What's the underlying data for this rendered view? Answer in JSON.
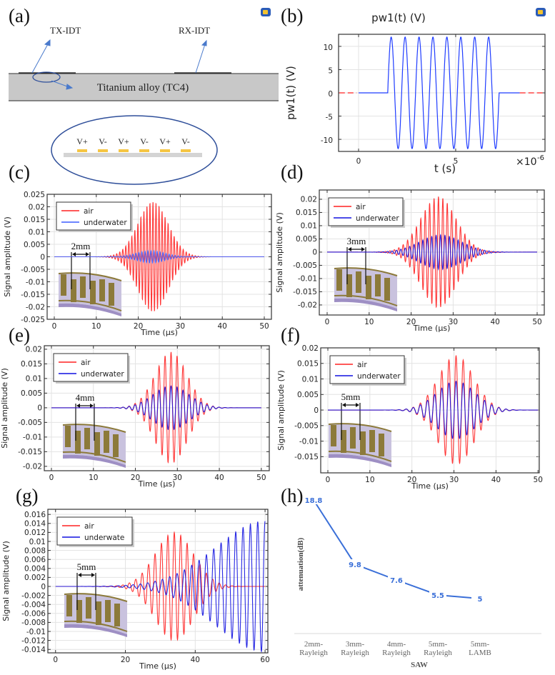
{
  "panel_labels": [
    "(a)",
    "(b)",
    "(c)",
    "(d)",
    "(e)",
    "(f)",
    "(g)",
    "(h)"
  ],
  "diagram_a": {
    "tx_label": "TX-IDT",
    "rx_label": "RX-IDT",
    "substrate_label": "Titanium alloy (TC4)",
    "electrode_labels": [
      "V+",
      "V-",
      "V+",
      "V-",
      "V+",
      "V-"
    ],
    "colors": {
      "substrate": "#c8c8c8",
      "electrode": "#f5c542",
      "callout": "#2f4f9a"
    }
  },
  "chart_data": [
    {
      "id": "b",
      "type": "line",
      "title": "pw1(t) (V)",
      "xlabel": "t (s)",
      "ylabel": "pw1(t) (V)",
      "x_multiplier": "×10",
      "x_exponent": "-6",
      "xlim": [
        -1.03,
        9.6
      ],
      "ylim": [
        -12.6,
        12.6
      ],
      "xticks": [
        0,
        5
      ],
      "yticks": [
        10,
        5,
        0,
        -5,
        -10
      ],
      "grid": true,
      "signal": {
        "amplitude": 12,
        "burst_start": 1.5,
        "cycles": 8,
        "period": 0.717,
        "color": "#1f3cff"
      },
      "extrapolation_color": "#ff2020"
    },
    {
      "id": "c",
      "type": "line",
      "xlabel": "Time (µs)",
      "ylabel": "Signal amplitude (V)",
      "xlim": [
        -1.7,
        51.7
      ],
      "ylim": [
        -0.025,
        0.025
      ],
      "xticks": [
        0,
        10,
        20,
        30,
        40,
        50
      ],
      "yticks": [
        0.025,
        0.02,
        0.015,
        0.01,
        0.005,
        0,
        -0.005,
        -0.01,
        -0.015,
        -0.02,
        -0.025
      ],
      "grid": true,
      "legend": "top-left",
      "spacing_label": "2mm",
      "series": [
        {
          "name": "air",
          "color": "#ff2020",
          "peak_amplitude": 0.022,
          "peak_time": 23.5,
          "spread": 3.6,
          "period": 0.72
        },
        {
          "name": "underwater",
          "color": "#3b5bff",
          "peak_amplitude": 0.0025,
          "peak_time": 23,
          "spread": 3.4,
          "period": 0.72
        }
      ]
    },
    {
      "id": "d",
      "type": "line",
      "xlabel": "Time (µs)",
      "ylabel": "Signal amplitude (V)",
      "xlim": [
        -1.87,
        51.7
      ],
      "ylim": [
        -0.0238,
        0.0235
      ],
      "xticks": [
        0,
        10,
        20,
        30,
        40,
        50
      ],
      "yticks": [
        0.02,
        0.015,
        0.01,
        0.005,
        0,
        -0.005,
        -0.01,
        -0.015,
        -0.02
      ],
      "grid": true,
      "legend": "top-left",
      "spacing_label": "3mm",
      "series": [
        {
          "name": "air",
          "color": "#ff2020",
          "peak_amplitude": 0.021,
          "peak_time": 26.5,
          "spread": 4.2,
          "period": 1.05
        },
        {
          "name": "underwater",
          "color": "#1010e0",
          "peak_amplitude": 0.0065,
          "peak_time": 27,
          "spread": 5,
          "period": 1.05
        }
      ]
    },
    {
      "id": "e",
      "type": "line",
      "xlabel": "Time (µs)",
      "ylabel": "Signal amplitude (V)",
      "xlim": [
        -1.7,
        51.9
      ],
      "ylim": [
        -0.0215,
        0.0212
      ],
      "xticks": [
        0,
        10,
        20,
        30,
        40,
        50
      ],
      "yticks": [
        0.02,
        0.015,
        0.01,
        0.005,
        0,
        -0.005,
        -0.01,
        -0.015,
        -0.02
      ],
      "grid": true,
      "legend": "top-left",
      "spacing_label": "4mm",
      "series": [
        {
          "name": "air",
          "color": "#ff2020",
          "peak_amplitude": 0.019,
          "peak_time": 28.5,
          "spread": 3.8,
          "period": 1.43
        },
        {
          "name": "underwater",
          "color": "#1010e0",
          "peak_amplitude": 0.0075,
          "peak_time": 28.5,
          "spread": 4.3,
          "period": 1.43
        }
      ]
    },
    {
      "id": "f",
      "type": "line",
      "xlabel": "Time (µs)",
      "ylabel": "Signal amplitude (V)",
      "xlim": [
        -1.7,
        50.3
      ],
      "ylim": [
        -0.0202,
        0.02
      ],
      "xticks": [
        0,
        10,
        20,
        30,
        40,
        50
      ],
      "yticks": [
        0.02,
        0.015,
        0.01,
        0.005,
        0,
        -0.005,
        -0.01,
        -0.015
      ],
      "grid": true,
      "legend": "top-left",
      "spacing_label": "5mm",
      "series": [
        {
          "name": "air",
          "color": "#ff2020",
          "peak_amplitude": 0.0175,
          "peak_time": 30.5,
          "spread": 4.2,
          "period": 1.7
        },
        {
          "name": "underwater",
          "color": "#1010e0",
          "peak_amplitude": 0.0093,
          "peak_time": 30.5,
          "spread": 4.6,
          "period": 1.7
        }
      ]
    },
    {
      "id": "g",
      "type": "line",
      "xlabel": "Time (µs)",
      "ylabel": "Signal amplitude (V)",
      "xlim": [
        -2.2,
        60.8
      ],
      "ylim": [
        -0.01476,
        0.01714
      ],
      "xticks": [
        0,
        20,
        40,
        60
      ],
      "yticks": [
        0.016,
        0.014,
        0.012,
        0.01,
        0.008,
        0.006,
        0.004,
        0.002,
        0,
        -0.002,
        -0.004,
        -0.006,
        -0.008,
        -0.01,
        -0.012,
        -0.014
      ],
      "grid": true,
      "legend": "top-left",
      "spacing_label": "5mm",
      "series": [
        {
          "name": "air",
          "color": "#ff2020",
          "peak_amplitude": 0.012,
          "peak_time": 34,
          "spread": 5.5,
          "period": 1.84
        },
        {
          "name": "underwate",
          "color": "#1010e0",
          "peak_amplitude": 0.0145,
          "peak_time": 60,
          "spread": 14,
          "period": 2.1
        }
      ]
    },
    {
      "id": "h",
      "type": "line",
      "xlabel": "SAW",
      "ylabel": "attenuation(dB)",
      "categories": [
        [
          "2mm-",
          "Rayleigh"
        ],
        [
          "3mm-",
          "Rayleigh"
        ],
        [
          "4mm-",
          "Rayleigh"
        ],
        [
          "5mm-",
          "Rayleigh"
        ],
        [
          "5mm-",
          "LAMB"
        ]
      ],
      "values": [
        18.8,
        9.8,
        7.6,
        5.5,
        5
      ],
      "data_labels": [
        "18.8",
        "9.8",
        "7.6",
        "5.5",
        "5"
      ],
      "ylim": [
        0,
        20
      ],
      "grid": false,
      "color": "#3a6fd8"
    }
  ]
}
